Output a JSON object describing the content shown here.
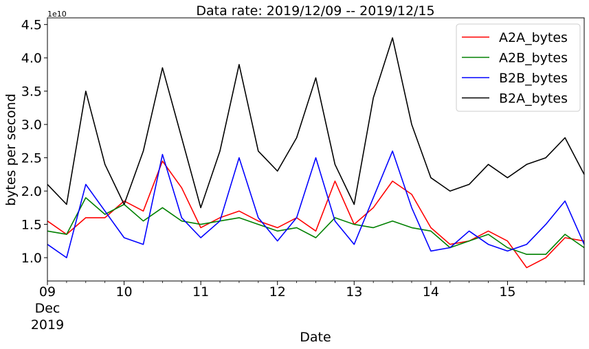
{
  "chart_data": {
    "type": "line",
    "title": "Data rate: 2019/12/09 -- 2019/12/15",
    "xlabel": "Date",
    "ylabel": "bytes per second",
    "y_multiplier": "1e10",
    "xlim": [
      "2019-12-09 00:00",
      "2019-12-16 00:00"
    ],
    "ylim": [
      0.65,
      4.6
    ],
    "y_ticks": [
      1.0,
      1.5,
      2.0,
      2.5,
      3.0,
      3.5,
      4.0,
      4.5
    ],
    "y_tick_labels": [
      "1.0",
      "1.5",
      "2.0",
      "2.5",
      "3.0",
      "3.5",
      "4.0",
      "4.5"
    ],
    "x_ticks": [
      "2019-12-09",
      "2019-12-10",
      "2019-12-11",
      "2019-12-12",
      "2019-12-13",
      "2019-12-14",
      "2019-12-15",
      "2019-12-16"
    ],
    "x_tick_labels": [
      "09\nDec\n2019",
      "10",
      "11",
      "12",
      "13",
      "14",
      "15",
      ""
    ],
    "legend_location": "upper right",
    "grid": false,
    "series": [
      {
        "name": "A2A_bytes",
        "color": "#ff0000",
        "x": [
          "2019-12-09 00:00",
          "2019-12-09 06:00",
          "2019-12-09 12:00",
          "2019-12-09 18:00",
          "2019-12-10 00:00",
          "2019-12-10 06:00",
          "2019-12-10 12:00",
          "2019-12-10 18:00",
          "2019-12-11 00:00",
          "2019-12-11 06:00",
          "2019-12-11 12:00",
          "2019-12-11 18:00",
          "2019-12-12 00:00",
          "2019-12-12 06:00",
          "2019-12-12 12:00",
          "2019-12-12 18:00",
          "2019-12-13 00:00",
          "2019-12-13 06:00",
          "2019-12-13 12:00",
          "2019-12-13 18:00",
          "2019-12-14 00:00",
          "2019-12-14 06:00",
          "2019-12-14 12:00",
          "2019-12-14 18:00",
          "2019-12-15 00:00",
          "2019-12-15 06:00",
          "2019-12-15 12:00",
          "2019-12-15 18:00",
          "2019-12-16 00:00"
        ],
        "values": [
          1.55,
          1.35,
          1.6,
          1.6,
          1.85,
          1.7,
          2.45,
          2.05,
          1.45,
          1.6,
          1.7,
          1.55,
          1.45,
          1.6,
          1.4,
          2.15,
          1.5,
          1.75,
          2.15,
          1.95,
          1.45,
          1.2,
          1.25,
          1.4,
          1.25,
          0.85,
          1.0,
          1.3,
          1.25
        ]
      },
      {
        "name": "A2B_bytes",
        "color": "#008000",
        "x": [
          "2019-12-09 00:00",
          "2019-12-09 06:00",
          "2019-12-09 12:00",
          "2019-12-09 18:00",
          "2019-12-10 00:00",
          "2019-12-10 06:00",
          "2019-12-10 12:00",
          "2019-12-10 18:00",
          "2019-12-11 00:00",
          "2019-12-11 06:00",
          "2019-12-11 12:00",
          "2019-12-11 18:00",
          "2019-12-12 00:00",
          "2019-12-12 06:00",
          "2019-12-12 12:00",
          "2019-12-12 18:00",
          "2019-12-13 00:00",
          "2019-12-13 06:00",
          "2019-12-13 12:00",
          "2019-12-13 18:00",
          "2019-12-14 00:00",
          "2019-12-14 06:00",
          "2019-12-14 12:00",
          "2019-12-14 18:00",
          "2019-12-15 00:00",
          "2019-12-15 06:00",
          "2019-12-15 12:00",
          "2019-12-15 18:00",
          "2019-12-16 00:00"
        ],
        "values": [
          1.4,
          1.35,
          1.9,
          1.65,
          1.8,
          1.55,
          1.75,
          1.55,
          1.5,
          1.55,
          1.6,
          1.5,
          1.4,
          1.45,
          1.3,
          1.6,
          1.5,
          1.45,
          1.55,
          1.45,
          1.4,
          1.15,
          1.25,
          1.35,
          1.15,
          1.05,
          1.05,
          1.35,
          1.15
        ]
      },
      {
        "name": "B2B_bytes",
        "color": "#0000ff",
        "x": [
          "2019-12-09 00:00",
          "2019-12-09 06:00",
          "2019-12-09 12:00",
          "2019-12-09 18:00",
          "2019-12-10 00:00",
          "2019-12-10 06:00",
          "2019-12-10 12:00",
          "2019-12-10 18:00",
          "2019-12-11 00:00",
          "2019-12-11 06:00",
          "2019-12-11 12:00",
          "2019-12-11 18:00",
          "2019-12-12 00:00",
          "2019-12-12 06:00",
          "2019-12-12 12:00",
          "2019-12-12 18:00",
          "2019-12-13 00:00",
          "2019-12-13 06:00",
          "2019-12-13 12:00",
          "2019-12-13 18:00",
          "2019-12-14 00:00",
          "2019-12-14 06:00",
          "2019-12-14 12:00",
          "2019-12-14 18:00",
          "2019-12-15 00:00",
          "2019-12-15 06:00",
          "2019-12-15 12:00",
          "2019-12-15 18:00",
          "2019-12-16 00:00"
        ],
        "values": [
          1.2,
          1.0,
          2.1,
          1.7,
          1.3,
          1.2,
          2.55,
          1.6,
          1.3,
          1.55,
          2.5,
          1.6,
          1.25,
          1.6,
          2.5,
          1.55,
          1.2,
          1.9,
          2.6,
          1.75,
          1.1,
          1.15,
          1.4,
          1.2,
          1.1,
          1.2,
          1.5,
          1.85,
          1.2
        ]
      },
      {
        "name": "B2A_bytes",
        "color": "#000000",
        "x": [
          "2019-12-09 00:00",
          "2019-12-09 06:00",
          "2019-12-09 12:00",
          "2019-12-09 18:00",
          "2019-12-10 00:00",
          "2019-12-10 06:00",
          "2019-12-10 12:00",
          "2019-12-10 18:00",
          "2019-12-11 00:00",
          "2019-12-11 06:00",
          "2019-12-11 12:00",
          "2019-12-11 18:00",
          "2019-12-12 00:00",
          "2019-12-12 06:00",
          "2019-12-12 12:00",
          "2019-12-12 18:00",
          "2019-12-13 00:00",
          "2019-12-13 06:00",
          "2019-12-13 12:00",
          "2019-12-13 18:00",
          "2019-12-14 00:00",
          "2019-12-14 06:00",
          "2019-12-14 12:00",
          "2019-12-14 18:00",
          "2019-12-15 00:00",
          "2019-12-15 06:00",
          "2019-12-15 12:00",
          "2019-12-15 18:00",
          "2019-12-16 00:00"
        ],
        "values": [
          2.1,
          1.8,
          3.5,
          2.4,
          1.8,
          2.6,
          3.85,
          2.8,
          1.75,
          2.6,
          3.9,
          2.6,
          2.3,
          2.8,
          3.7,
          2.4,
          1.8,
          3.4,
          4.3,
          3.0,
          2.2,
          2.0,
          2.1,
          2.4,
          2.2,
          2.4,
          2.5,
          2.8,
          2.25
        ]
      }
    ]
  }
}
